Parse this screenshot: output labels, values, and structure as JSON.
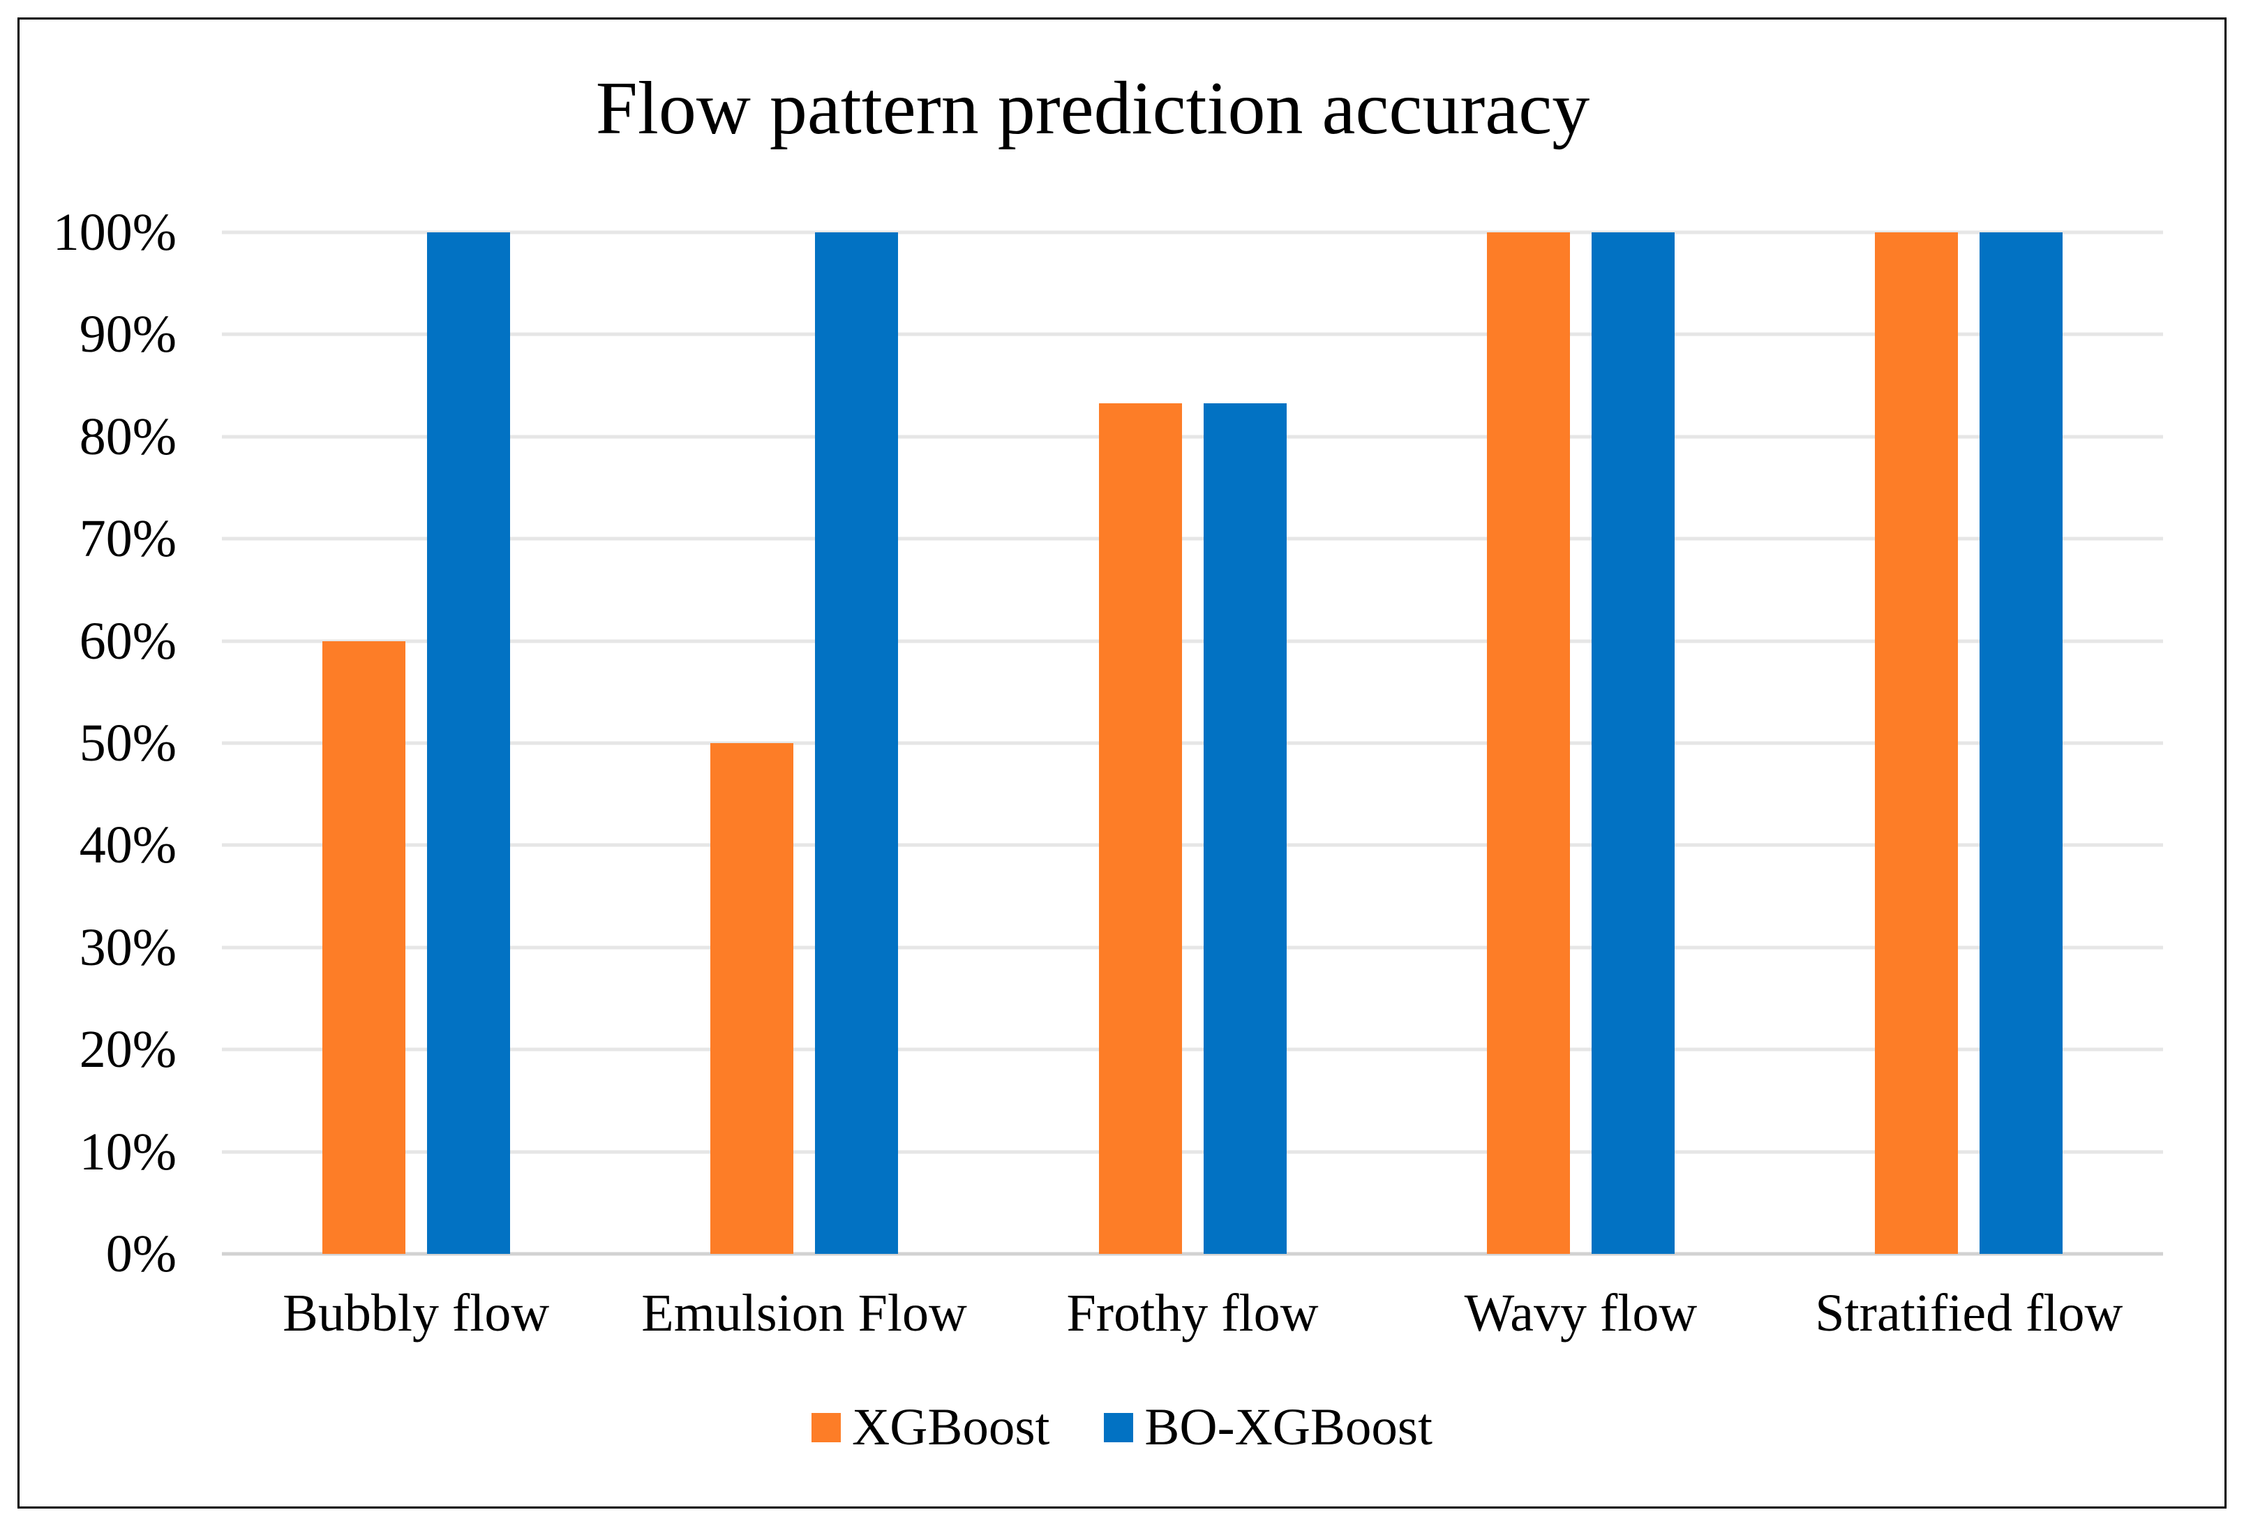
{
  "chart_data": {
    "type": "bar",
    "title": "Flow pattern prediction accuracy",
    "categories": [
      "Bubbly flow",
      "Emulsion Flow",
      "Frothy flow",
      "Wavy flow",
      "Stratified flow"
    ],
    "series": [
      {
        "name": "XGBoost",
        "color": "#FD7D27",
        "values": [
          60,
          50,
          83.3,
          100,
          100
        ]
      },
      {
        "name": "BO-XGBoost",
        "color": "#0272C3",
        "values": [
          100,
          100,
          83.3,
          100,
          100
        ]
      }
    ],
    "y_axis": {
      "min": 0,
      "max": 100,
      "tick_values": [
        0,
        10,
        20,
        30,
        40,
        50,
        60,
        70,
        80,
        90,
        100
      ],
      "tick_labels": [
        "0%",
        "10%",
        "20%",
        "30%",
        "40%",
        "50%",
        "60%",
        "70%",
        "80%",
        "90%",
        "100%"
      ]
    },
    "grid": true,
    "legend_position": "bottom"
  },
  "colors": {
    "background": "#FFFFFF",
    "frame_border": "#000000",
    "gridline": "#E6E6E6",
    "axis_line": "#D2D2D2",
    "text": "#000000"
  }
}
